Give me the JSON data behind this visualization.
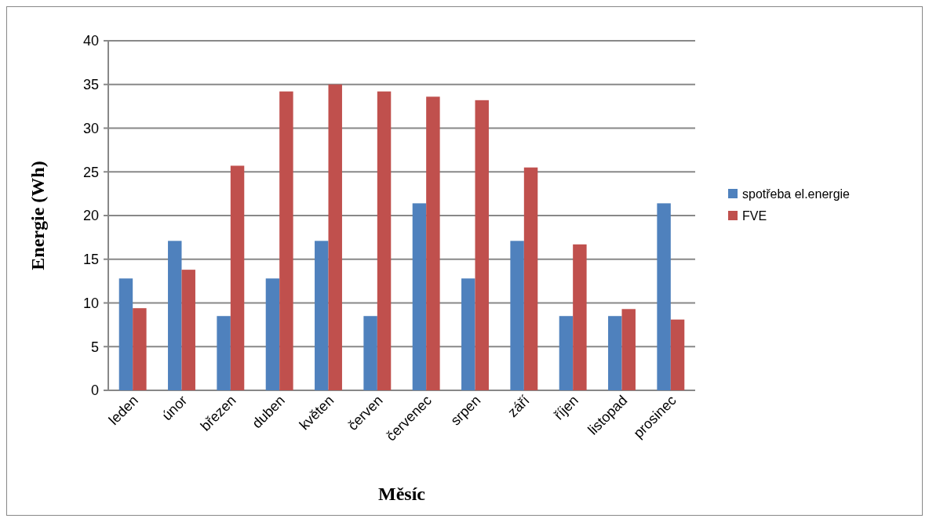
{
  "chart_data": {
    "type": "bar",
    "xlabel": "Měsíc",
    "ylabel": "Energie (Wh)",
    "categories": [
      "leden",
      "únor",
      "březen",
      "duben",
      "květen",
      "červen",
      "červenec",
      "srpen",
      "září",
      "říjen",
      "listopad",
      "prosinec"
    ],
    "series": [
      {
        "name": "spotřeba el.energie",
        "color": "#4f81bd",
        "values": [
          12.8,
          17.1,
          8.5,
          12.8,
          17.1,
          8.5,
          21.4,
          12.8,
          17.1,
          8.5,
          8.5,
          21.4
        ]
      },
      {
        "name": "FVE",
        "color": "#c0504d",
        "values": [
          9.4,
          13.8,
          25.7,
          34.2,
          35,
          34.2,
          33.6,
          33.2,
          25.5,
          16.7,
          9.3,
          8.1
        ]
      }
    ],
    "ylim": [
      0,
      40
    ],
    "yticks": [
      0,
      5,
      10,
      15,
      20,
      25,
      30,
      35,
      40
    ],
    "grid": "y",
    "legend": "right"
  }
}
